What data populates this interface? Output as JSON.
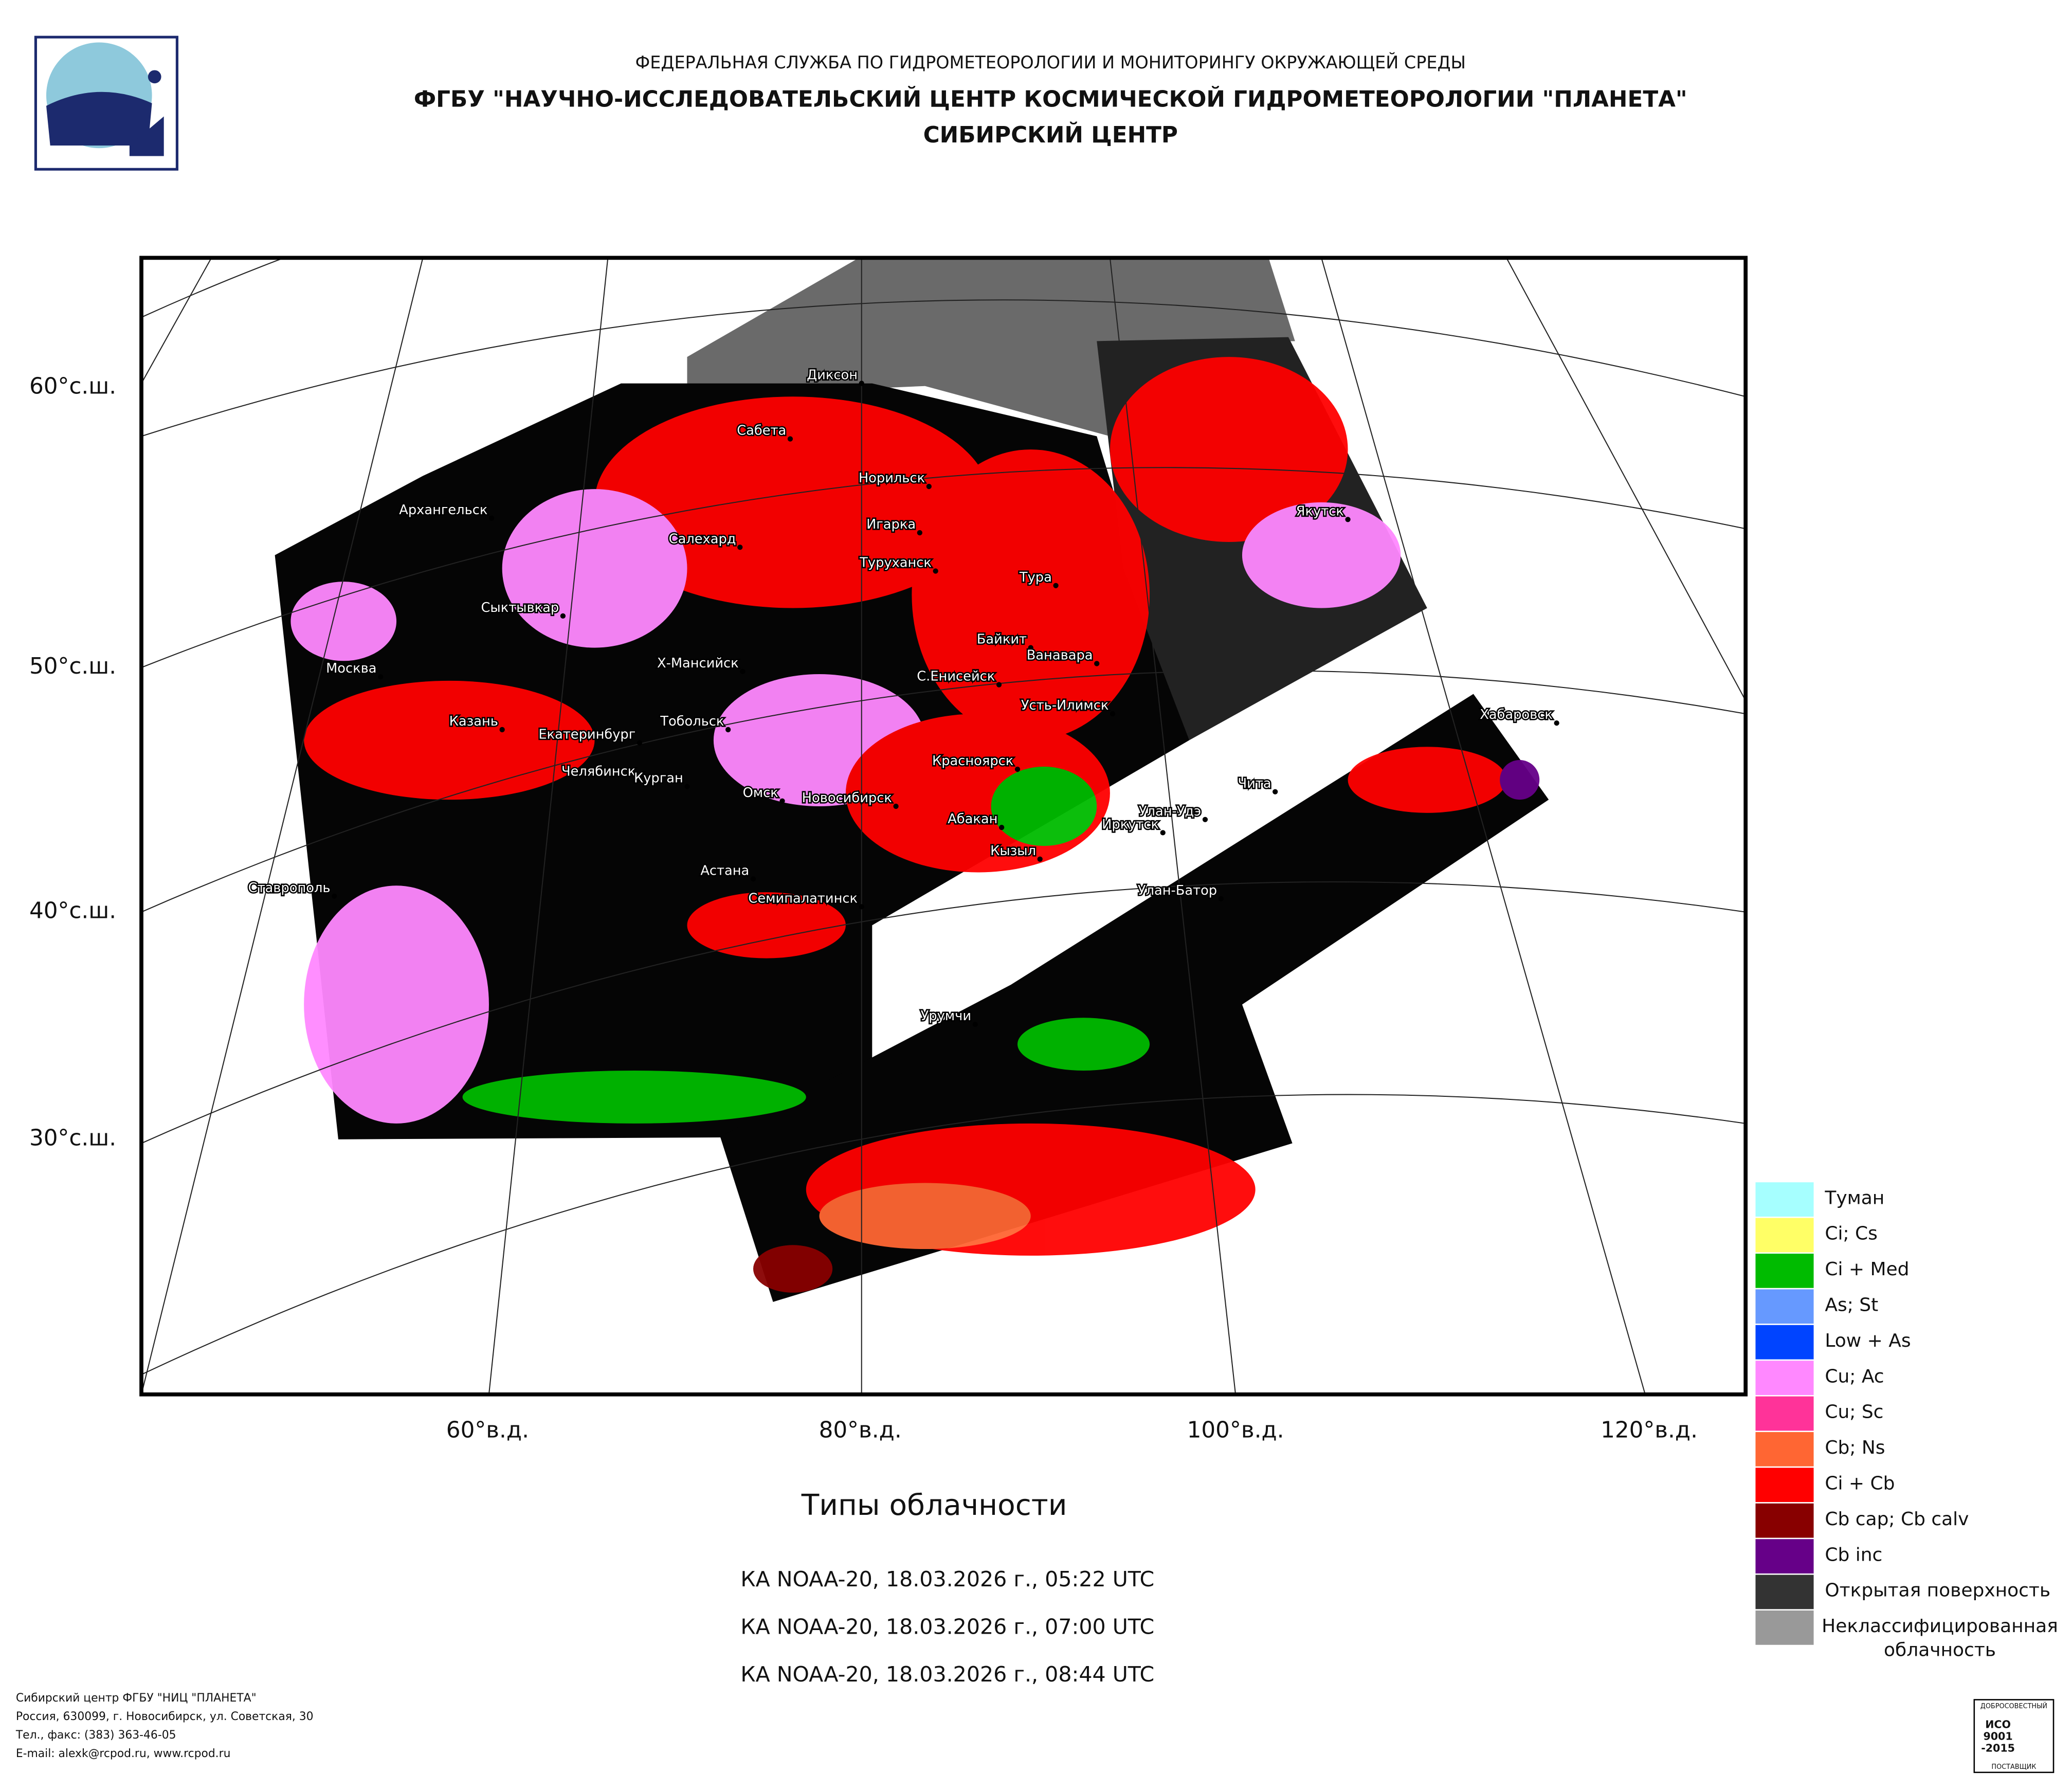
{
  "header": {
    "line1": "ФЕДЕРАЛЬНАЯ СЛУЖБА ПО ГИДРОМЕТЕОРОЛОГИИ И МОНИТОРИНГУ ОКРУЖАЮЩЕЙ СРЕДЫ",
    "line2": "ФГБУ \"НАУЧНО-ИССЛЕДОВАТЕЛЬСКИЙ ЦЕНТР КОСМИЧЕСКОЙ ГИДРОМЕТЕОРОЛОГИИ \"ПЛАНЕТА\"",
    "line3": "СИБИРСКИЙ ЦЕНТР"
  },
  "map": {
    "lat_labels": [
      "60°с.ш.",
      "50°с.ш.",
      "40°с.ш.",
      "30°с.ш."
    ],
    "lon_labels": [
      "60°в.д.",
      "80°в.д.",
      "100°в.д.",
      "120°в.д."
    ],
    "cities": [
      "Диксон",
      "Сабета",
      "Норильск",
      "Архангельск",
      "Игарка",
      "Салехард",
      "Туруханск",
      "Тура",
      "Якутск",
      "Сыктывкар",
      "Байкит",
      "Ванавара",
      "Москва",
      "Х-Мансийск",
      "С.Енисейск",
      "Усть-Илимск",
      "Казань",
      "Тобольск",
      "Екатеринбург",
      "Хабаровск",
      "Красноярск",
      "Челябинск",
      "Курган",
      "Чита",
      "Омск",
      "Новосибирск",
      "Абакан",
      "Улан-Удэ",
      "Иркутск",
      "Кызыл",
      "Астана",
      "Ставрополь",
      "Улан-Батор",
      "Семипалатинск",
      "Урумчи"
    ]
  },
  "legend": {
    "items": [
      {
        "lines": [
          "Туман"
        ],
        "color": "#a6ffff"
      },
      {
        "lines": [
          "Ci; Cs"
        ],
        "color": "#ffff66"
      },
      {
        "lines": [
          "Ci + Med"
        ],
        "color": "#00bb00"
      },
      {
        "lines": [
          "As; St"
        ],
        "color": "#6699ff"
      },
      {
        "lines": [
          "Low + As"
        ],
        "color": "#0044ff"
      },
      {
        "lines": [
          "Cu; Ac"
        ],
        "color": "#ff88ff"
      },
      {
        "lines": [
          "Cu; Sc"
        ],
        "color": "#ff3399"
      },
      {
        "lines": [
          "Cb; Ns"
        ],
        "color": "#ff6633"
      },
      {
        "lines": [
          "Ci + Cb"
        ],
        "color": "#ff0000"
      },
      {
        "lines": [
          "Cb cap; Cb calv"
        ],
        "color": "#880000"
      },
      {
        "lines": [
          "Cb inc"
        ],
        "color": "#660088"
      },
      {
        "lines": [
          "Открытая поверхность"
        ],
        "color": "#333333"
      },
      {
        "lines": [
          "Неклассифицированная",
          "облачность"
        ],
        "color": "#999999"
      }
    ]
  },
  "title": "Типы облачности",
  "passes": [
    "КА NOAA-20, 18.03.2026 г., 05:22 UTC",
    "КА NOAA-20, 18.03.2026 г., 07:00 UTC",
    "КА NOAA-20, 18.03.2026 г., 08:44 UTC"
  ],
  "footer": [
    "Сибирский центр ФГБУ \"НИЦ \"ПЛАНЕТА\"",
    "Россия, 630099, г. Новосибирск, ул. Советская, 30",
    "Тел., факс: (383) 363-46-05",
    "E-mail: alexk@rcpod.ru, www.rcpod.ru"
  ],
  "iso": {
    "top": "ДОБРОСОВЕСТНЫЙ",
    "lines": [
      "ИСО",
      "9001",
      "-2015"
    ],
    "bottom": "ПОСТАВЩИК"
  }
}
